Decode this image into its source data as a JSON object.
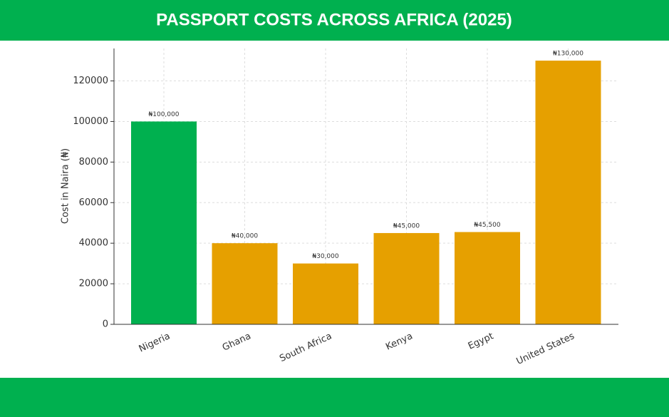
{
  "chart_data": {
    "type": "bar",
    "title": "PASSPORT COSTS ACROSS AFRICA (2025)",
    "y_label": "Cost in Naira (₦)",
    "categories": [
      "Nigeria",
      "Ghana",
      "South Africa",
      "Kenya",
      "Egypt",
      "United States"
    ],
    "values": [
      100000,
      40000,
      30000,
      45000,
      45500,
      130000
    ],
    "value_labels": [
      "₦100,000",
      "₦40,000",
      "₦30,000",
      "₦45,000",
      "₦45,500",
      "₦130,000"
    ],
    "colors": [
      "#00b04f",
      "#e6a000",
      "#e6a000",
      "#e6a000",
      "#e6a000",
      "#e6a000"
    ],
    "ylim": [
      0,
      136000
    ],
    "yticks": [
      0,
      20000,
      40000,
      60000,
      80000,
      100000,
      120000
    ],
    "grid": true
  }
}
